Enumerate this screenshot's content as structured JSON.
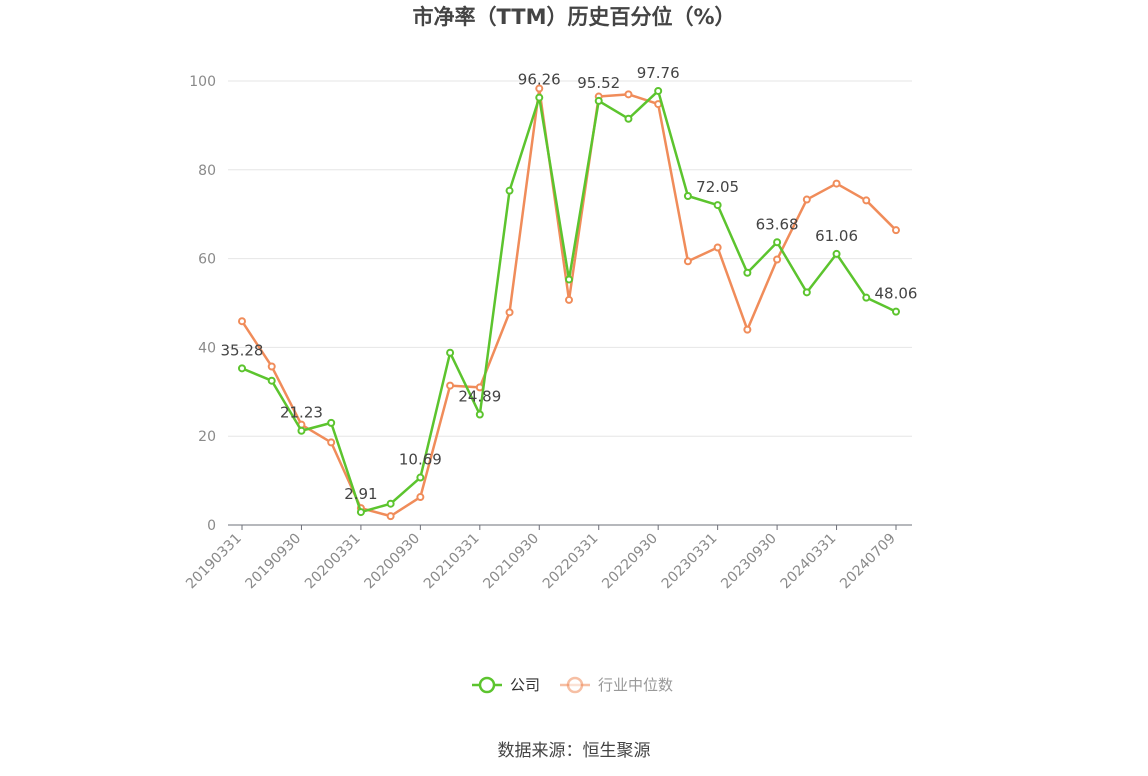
{
  "chart_data": {
    "type": "line",
    "title": "市净率（TTM）历史百分位（%）",
    "ylim": [
      0,
      100
    ],
    "yticks": [
      0,
      20,
      40,
      60,
      80,
      100
    ],
    "x_tick_labels": [
      "20190331",
      "20190930",
      "20200331",
      "20200930",
      "20210331",
      "20210930",
      "20220331",
      "20220930",
      "20230331",
      "20230930",
      "20240331",
      "20240709"
    ],
    "grid": true,
    "legend_position": "bottom",
    "series": [
      {
        "name": "公司",
        "color": "#5cc42e",
        "values": [
          35.28,
          32.5,
          21.23,
          23.0,
          2.91,
          4.8,
          10.69,
          38.8,
          24.89,
          75.3,
          96.26,
          55.3,
          95.52,
          91.5,
          97.76,
          74.1,
          72.05,
          56.8,
          63.68,
          52.4,
          61.06,
          51.2,
          48.06
        ],
        "labeled_indices": [
          0,
          2,
          4,
          6,
          8,
          10,
          12,
          14,
          16,
          18,
          20,
          22
        ]
      },
      {
        "name": "行业中位数",
        "color": "#f08c5a",
        "values": [
          45.9,
          35.7,
          22.6,
          18.6,
          3.8,
          2.0,
          6.3,
          31.4,
          31.0,
          47.9,
          98.3,
          50.7,
          96.5,
          97.0,
          94.8,
          59.4,
          62.5,
          44.0,
          59.8,
          73.3,
          76.9,
          73.1,
          66.4
        ]
      }
    ],
    "source": "数据来源：恒生聚源"
  }
}
